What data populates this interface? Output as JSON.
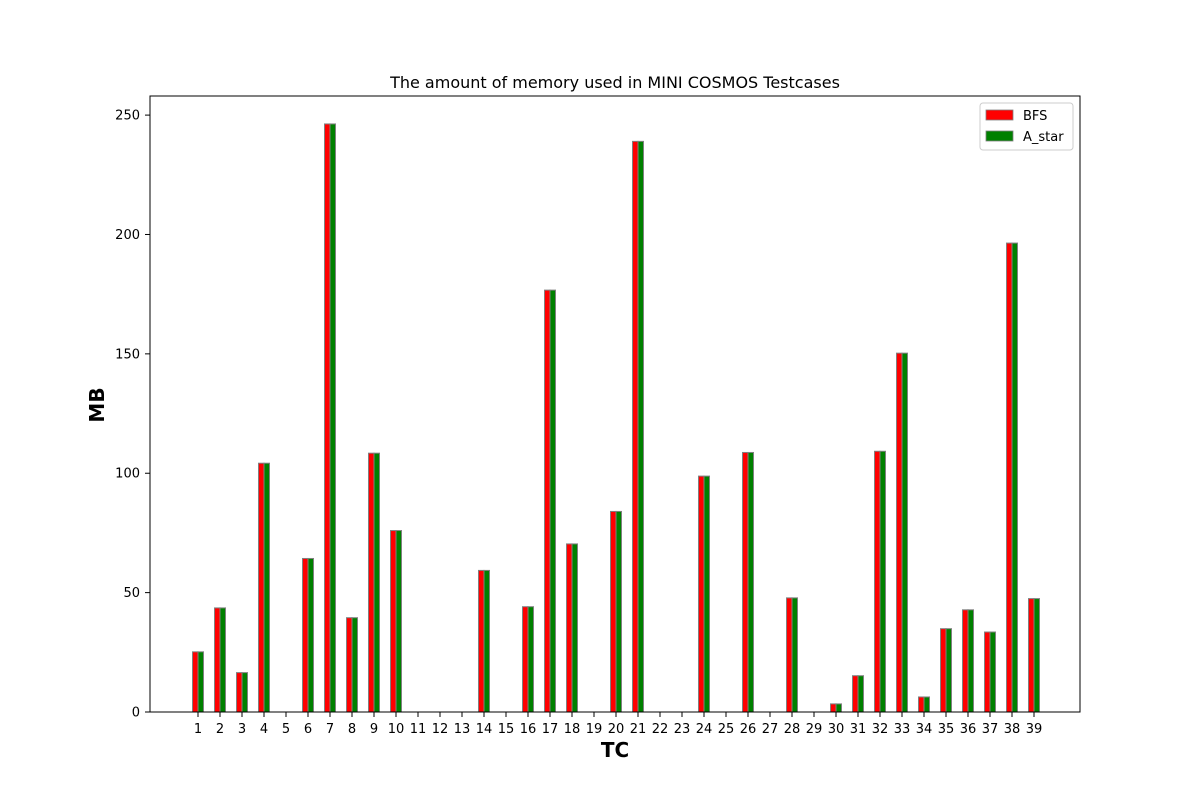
{
  "chart_data": {
    "type": "bar",
    "title": "The amount of memory used in MINI COSMOS Testcases",
    "xlabel": "TC",
    "ylabel": "MB",
    "categories": [
      "1",
      "2",
      "3",
      "4",
      "5",
      "6",
      "7",
      "8",
      "9",
      "10",
      "11",
      "12",
      "13",
      "14",
      "15",
      "16",
      "17",
      "18",
      "19",
      "20",
      "21",
      "22",
      "23",
      "24",
      "25",
      "26",
      "27",
      "28",
      "29",
      "30",
      "31",
      "32",
      "33",
      "34",
      "35",
      "36",
      "37",
      "38",
      "39"
    ],
    "series": [
      {
        "name": "BFS",
        "color": "#ff0000",
        "values": [
          25.2,
          43.6,
          16.5,
          104.2,
          0,
          64.3,
          246.3,
          39.5,
          108.4,
          76.0,
          0,
          0,
          0,
          59.3,
          0,
          44.1,
          176.7,
          70.4,
          0,
          84.0,
          239.0,
          0,
          0,
          98.8,
          0,
          108.7,
          0,
          47.8,
          0,
          3.4,
          15.2,
          109.2,
          150.3,
          6.3,
          34.9,
          42.8,
          33.5,
          196.4,
          47.5
        ]
      },
      {
        "name": "A_star",
        "color": "#008000",
        "values": [
          25.2,
          43.6,
          16.5,
          104.2,
          0,
          64.3,
          246.3,
          39.5,
          108.4,
          76.0,
          0,
          0,
          0,
          59.3,
          0,
          44.1,
          176.7,
          70.4,
          0,
          84.0,
          239.0,
          0,
          0,
          98.8,
          0,
          108.7,
          0,
          47.8,
          0,
          3.4,
          15.2,
          109.2,
          150.3,
          6.3,
          34.9,
          42.8,
          33.5,
          196.4,
          47.5
        ]
      }
    ],
    "yticks": [
      0,
      50,
      100,
      150,
      200,
      250
    ],
    "ylim": [
      0,
      258
    ],
    "grid": false,
    "legend_position": "top-right",
    "bar_edge_color": "#808080"
  }
}
